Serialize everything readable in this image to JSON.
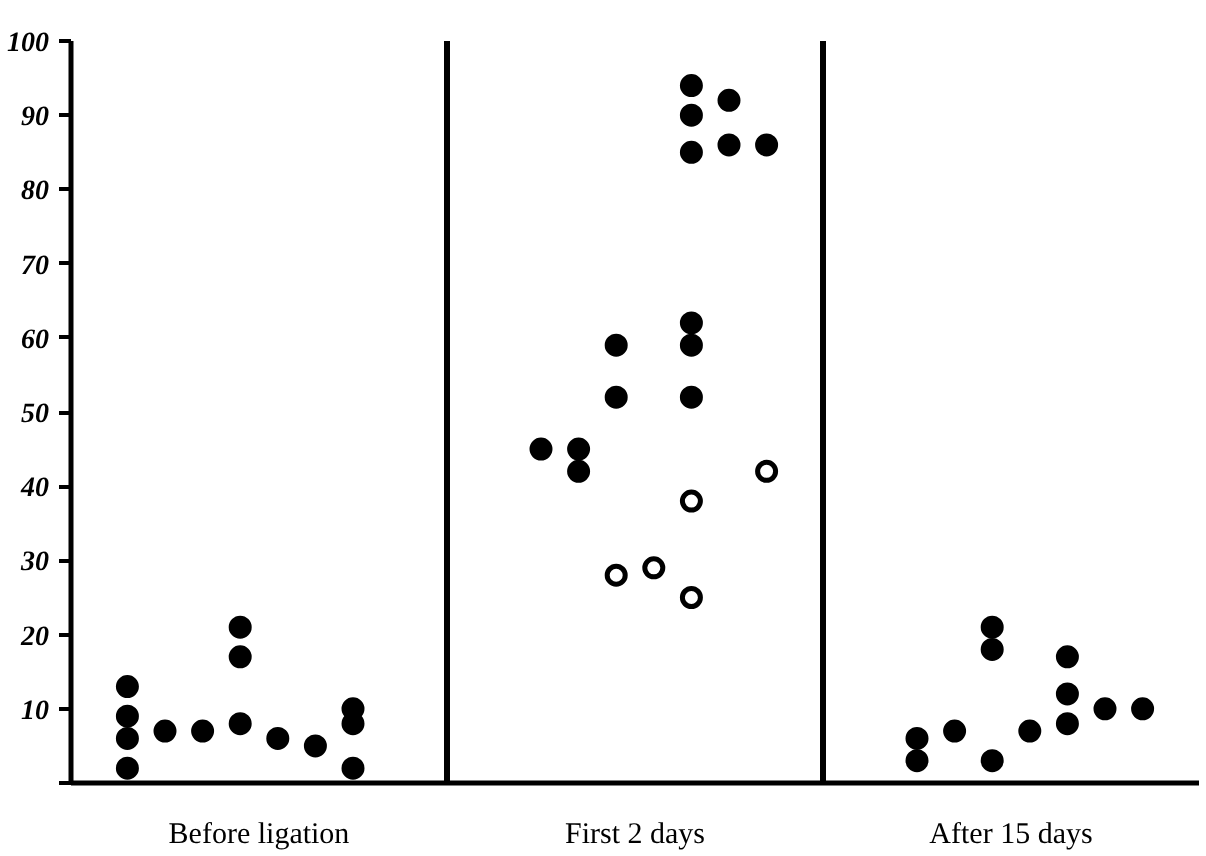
{
  "chart_data": {
    "type": "scatter",
    "categories": [
      null,
      null,
      null,
      null,
      null,
      null,
      null,
      null,
      null,
      null,
      null,
      null,
      null,
      null,
      null,
      null,
      null,
      null,
      null,
      null,
      null,
      null,
      null,
      null,
      null,
      null,
      null,
      null,
      null,
      null
    ],
    "annotations": [
      "Before ligation",
      "First 2 days",
      "After 15 days"
    ],
    "ylim": [
      0,
      100
    ],
    "yticks": [
      {
        "value": 0,
        "label": null
      },
      10,
      20,
      30,
      40,
      50,
      60,
      70,
      80,
      90,
      100
    ],
    "grid": false,
    "marker": "circle",
    "series": [
      {
        "color": "#000000",
        "values": [
          null,
          13,
          7,
          7,
          21,
          6,
          5,
          8,
          null,
          null,
          null,
          null,
          45,
          45,
          59,
          null,
          94,
          92,
          86,
          null,
          null,
          null,
          6,
          7,
          21,
          7,
          17,
          10,
          10,
          null
        ]
      },
      {
        "color": "#000000",
        "values": [
          null,
          9,
          null,
          null,
          17,
          null,
          null,
          10,
          null,
          null,
          null,
          null,
          null,
          42,
          52,
          null,
          90,
          86,
          null,
          null,
          null,
          null,
          3,
          null,
          18,
          null,
          12,
          null,
          null,
          null
        ]
      },
      {
        "color": "#000000",
        "values": [
          null,
          6,
          null,
          null,
          8,
          null,
          null,
          2,
          null,
          null,
          null,
          null,
          null,
          null,
          null,
          null,
          85,
          null,
          null,
          null,
          null,
          null,
          null,
          null,
          3,
          null,
          8,
          null,
          null,
          null
        ]
      },
      {
        "color": "#000000",
        "values": [
          null,
          2,
          null,
          null,
          null,
          null,
          null,
          null,
          null,
          null,
          null,
          null,
          null,
          null,
          null,
          null,
          62,
          null,
          null,
          null,
          null,
          null,
          null,
          null,
          null,
          null,
          null,
          null,
          null,
          null
        ]
      },
      {
        "color": "#000000",
        "values": [
          null,
          null,
          null,
          null,
          null,
          null,
          null,
          null,
          null,
          null,
          null,
          null,
          null,
          null,
          null,
          null,
          59,
          null,
          null,
          null,
          null,
          null,
          null,
          null,
          null,
          null,
          null,
          null,
          null,
          null
        ]
      },
      {
        "color": "#000000",
        "values": [
          null,
          null,
          null,
          null,
          null,
          null,
          null,
          null,
          null,
          null,
          null,
          null,
          null,
          null,
          null,
          null,
          52,
          null,
          null,
          null,
          null,
          null,
          null,
          null,
          null,
          null,
          null,
          null,
          null,
          null
        ]
      },
      {
        "color": "#ffffff",
        "values": [
          null,
          null,
          null,
          null,
          null,
          null,
          null,
          null,
          null,
          null,
          null,
          null,
          null,
          null,
          28,
          29,
          38,
          null,
          42,
          null,
          null,
          null,
          null,
          null,
          null,
          null,
          null,
          null,
          null,
          null
        ]
      },
      {
        "color": "#ffffff",
        "values": [
          null,
          null,
          null,
          null,
          null,
          null,
          null,
          null,
          null,
          null,
          null,
          null,
          null,
          null,
          null,
          null,
          25,
          null,
          null,
          null,
          null,
          null,
          null,
          null,
          null,
          null,
          null,
          null,
          null,
          null
        ]
      }
    ]
  }
}
